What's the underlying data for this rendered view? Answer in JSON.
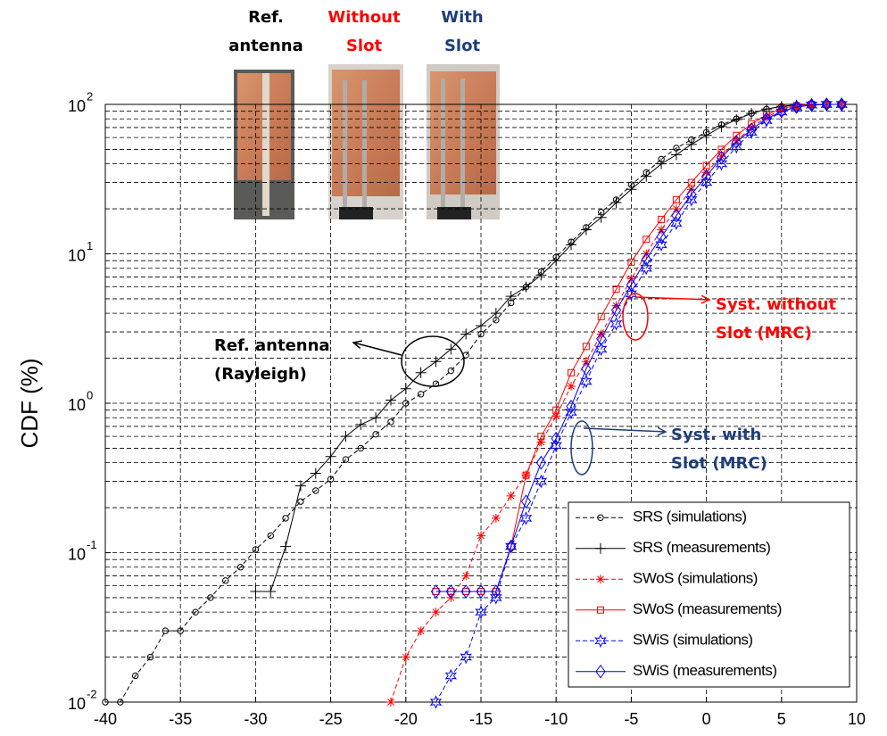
{
  "chart_data": {
    "type": "line",
    "ylabel": "CDF (%)",
    "xlim": [
      -40,
      10
    ],
    "xticks": [
      -40,
      -35,
      -30,
      -25,
      -20,
      -15,
      -10,
      -5,
      0,
      5,
      10
    ],
    "ylim": [
      0.01,
      100
    ],
    "yscale": "log",
    "yticks": [
      {
        "value": 0.01,
        "label": "10",
        "exponent": "-2"
      },
      {
        "value": 0.1,
        "label": "10",
        "exponent": "-1"
      },
      {
        "value": 1,
        "label": "10",
        "exponent": "0"
      },
      {
        "value": 10,
        "label": "10",
        "exponent": "1"
      },
      {
        "value": 100,
        "label": "10",
        "exponent": "2"
      }
    ],
    "grid": true,
    "minor_grid": true,
    "legend": "lower right",
    "series": [
      {
        "name": "SRS (simulations)",
        "color": "#000000",
        "dash": true,
        "marker": "circle",
        "x": [
          -40,
          -39,
          -38,
          -37,
          -36,
          -35,
          -34,
          -33,
          -32,
          -31,
          -30,
          -29,
          -28,
          -27,
          -26,
          -25,
          -24,
          -23,
          -22,
          -21,
          -20,
          -19,
          -18,
          -17,
          -16,
          -15,
          -14,
          -13,
          -12,
          -11,
          -10,
          -9,
          -8,
          -7,
          -6,
          -5,
          -4,
          -3,
          -2,
          -1,
          0,
          1,
          2,
          3,
          4,
          5,
          6,
          7,
          8,
          9
        ],
        "values": [
          0.01,
          0.01,
          0.015,
          0.02,
          0.03,
          0.03,
          0.04,
          0.05,
          0.065,
          0.08,
          0.105,
          0.13,
          0.17,
          0.22,
          0.26,
          0.31,
          0.42,
          0.5,
          0.62,
          0.75,
          1.0,
          1.15,
          1.35,
          1.65,
          2.1,
          2.9,
          3.6,
          4.7,
          6,
          7.6,
          9.5,
          12,
          15,
          19,
          23,
          29,
          35,
          43,
          51,
          58,
          65,
          73,
          80,
          87,
          93,
          97,
          99,
          100,
          100,
          100
        ]
      },
      {
        "name": "SRS (measurements)",
        "color": "#000000",
        "dash": false,
        "marker": "plus",
        "x": [
          -30,
          -29,
          -28,
          -27,
          -26,
          -25,
          -24,
          -23,
          -22,
          -21,
          -20,
          -19,
          -18,
          -17,
          -16,
          -15,
          -14,
          -13,
          -12,
          -11,
          -10,
          -9,
          -8,
          -7,
          -6,
          -5,
          -4,
          -3,
          -2,
          -1,
          0,
          1,
          2,
          3,
          4,
          5,
          6,
          7,
          8,
          9
        ],
        "values": [
          0.055,
          0.055,
          0.11,
          0.28,
          0.34,
          0.44,
          0.6,
          0.72,
          0.8,
          1.05,
          1.25,
          1.6,
          1.9,
          2.3,
          2.9,
          3.3,
          4.0,
          5.2,
          6.0,
          7.2,
          9.0,
          11.5,
          14.5,
          17.5,
          22,
          27,
          33,
          40,
          46,
          54,
          62,
          71,
          79,
          87,
          93,
          97,
          99,
          100,
          100,
          100
        ]
      },
      {
        "name": "SWoS (simulations)",
        "color": "#ff0000",
        "dash": true,
        "marker": "star",
        "x": [
          -21,
          -20,
          -19,
          -18,
          -17,
          -16,
          -15,
          -14,
          -13,
          -12,
          -11,
          -10,
          -9,
          -8,
          -7,
          -6,
          -5,
          -4,
          -3,
          -2,
          -1,
          0,
          1,
          2,
          3,
          4,
          5,
          6,
          7,
          8,
          9
        ],
        "values": [
          0.01,
          0.02,
          0.03,
          0.04,
          0.05,
          0.07,
          0.13,
          0.17,
          0.24,
          0.33,
          0.55,
          0.82,
          1.3,
          1.9,
          2.9,
          4.5,
          6.8,
          10,
          14.5,
          20,
          27,
          35,
          45,
          57,
          70,
          82,
          92,
          97,
          99,
          100,
          100
        ]
      },
      {
        "name": "SWoS (measurements)",
        "color": "#ff0000",
        "dash": false,
        "marker": "square",
        "x": [
          -18,
          -17,
          -16,
          -15,
          -14,
          -13,
          -12,
          -11,
          -10,
          -9,
          -8,
          -7,
          -6,
          -5,
          -4,
          -3,
          -2,
          -1,
          0,
          1,
          2,
          3,
          4,
          5,
          6,
          7,
          8,
          9
        ],
        "values": [
          0.055,
          0.055,
          0.055,
          0.055,
          0.055,
          0.11,
          0.33,
          0.6,
          0.9,
          1.6,
          2.4,
          3.8,
          5.8,
          8.8,
          12.5,
          17,
          23,
          30,
          39,
          50,
          62,
          74,
          85,
          94,
          98,
          100,
          100,
          100
        ]
      },
      {
        "name": "SWiS (simulations)",
        "color": "#0000ff",
        "dash": true,
        "marker": "hexagram",
        "x": [
          -18,
          -17,
          -16,
          -15,
          -14,
          -13,
          -12,
          -11,
          -10,
          -9,
          -8,
          -7,
          -6,
          -5,
          -4,
          -3,
          -2,
          -1,
          0,
          1,
          2,
          3,
          4,
          5,
          6,
          7,
          8,
          9
        ],
        "values": [
          0.01,
          0.015,
          0.02,
          0.04,
          0.05,
          0.11,
          0.17,
          0.3,
          0.52,
          0.87,
          1.4,
          2.3,
          3.4,
          5.4,
          8,
          11.5,
          16,
          23,
          30,
          40,
          52,
          65,
          78,
          89,
          96,
          99,
          100,
          100
        ]
      },
      {
        "name": "SWiS (measurements)",
        "color": "#0000ff",
        "dash": false,
        "marker": "diamond",
        "x": [
          -18,
          -17,
          -16,
          -15,
          -14,
          -13,
          -12,
          -11,
          -10,
          -9,
          -8,
          -7,
          -6,
          -5,
          -4,
          -3,
          -2,
          -1,
          0,
          1,
          2,
          3,
          4,
          5,
          6,
          7,
          8,
          9
        ],
        "values": [
          0.055,
          0.055,
          0.055,
          0.055,
          0.055,
          0.11,
          0.22,
          0.4,
          0.58,
          0.95,
          1.7,
          2.7,
          4.2,
          6.2,
          9.2,
          13,
          18,
          25,
          33,
          44,
          56,
          68,
          80,
          90,
          96,
          99,
          100,
          100
        ]
      }
    ],
    "annotations": [
      {
        "lines": [
          "Ref. antenna",
          "(Rayleigh)"
        ],
        "color": "#000000"
      },
      {
        "lines": [
          "Syst. without",
          "Slot (MRC)"
        ],
        "color": "#ff0000"
      },
      {
        "lines": [
          "Syst. with",
          "Slot (MRC)"
        ],
        "color": "#1f3d7a"
      }
    ],
    "photo_labels": [
      {
        "lines": [
          "Ref.",
          "antenna"
        ],
        "color": "#000000"
      },
      {
        "lines": [
          "Without",
          "Slot"
        ],
        "color": "#ff0000"
      },
      {
        "lines": [
          "With",
          "Slot"
        ],
        "color": "#1f3d7a"
      }
    ]
  }
}
